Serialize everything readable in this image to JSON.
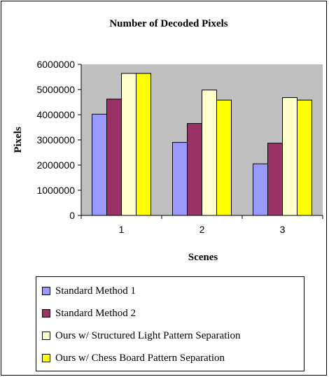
{
  "chart_data": {
    "type": "bar",
    "title": "Number of Decoded Pixels",
    "xlabel": "Scenes",
    "ylabel": "Pixels",
    "categories": [
      "1",
      "2",
      "3"
    ],
    "ylim": [
      0,
      6000000
    ],
    "yticks": [
      0,
      1000000,
      2000000,
      3000000,
      4000000,
      5000000,
      6000000
    ],
    "ytick_labels": [
      "0",
      "1000000",
      "2000000",
      "3000000",
      "4000000",
      "5000000",
      "6000000"
    ],
    "plot_background": "#c0c0c0",
    "grid": false,
    "legend_position": "bottom",
    "series": [
      {
        "name": "Standard Method 1",
        "color": "#9999ff",
        "values": [
          4020000,
          2900000,
          2050000
        ]
      },
      {
        "name": "Standard Method 2",
        "color": "#993366",
        "values": [
          4620000,
          3650000,
          2870000
        ]
      },
      {
        "name": "Ours w/ Structured Light Pattern Separation",
        "color": "#ffffcc",
        "values": [
          5640000,
          4980000,
          4680000
        ]
      },
      {
        "name": "Ours w/ Chess Board Pattern Separation",
        "color": "#ffff00",
        "values": [
          5640000,
          4580000,
          4580000
        ]
      }
    ]
  }
}
